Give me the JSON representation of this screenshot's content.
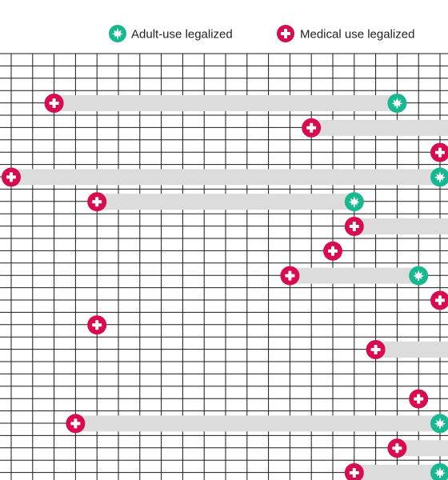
{
  "chart_data": {
    "type": "timeline",
    "legend": {
      "placement": "top-right",
      "items": [
        {
          "key": "adult",
          "label": "Adult-use legalized",
          "color": "#17b890",
          "icon": "cannabis-leaf-icon"
        },
        {
          "key": "medical",
          "label": "Medical use legalized",
          "color": "#d90b4f",
          "icon": "medical-cross-icon"
        }
      ]
    },
    "grid": true,
    "x_unit": "grid-columns",
    "xlim": [
      0,
      21
    ],
    "rows": [
      {
        "medical": 2.5,
        "adult": 18.5
      },
      {
        "medical": 14.5,
        "adult": null,
        "continues": true
      },
      {
        "medical": 20.5,
        "adult": null
      },
      {
        "medical": 0.5,
        "adult": 20.5
      },
      {
        "medical": 4.5,
        "adult": 16.5
      },
      {
        "medical": 16.5,
        "adult": null,
        "continues": true
      },
      {
        "medical": 15.5,
        "adult": null
      },
      {
        "medical": 13.5,
        "adult": 19.5
      },
      {
        "medical": 20.5,
        "adult": null
      },
      {
        "medical": 4.5,
        "adult": null
      },
      {
        "medical": 17.5,
        "adult": null,
        "continues": true
      },
      {
        "medical": null,
        "adult": null
      },
      {
        "medical": 19.5,
        "adult": null
      },
      {
        "medical": 3.5,
        "adult": 20.5
      },
      {
        "medical": 18.5,
        "adult": null,
        "continues": true
      },
      {
        "medical": 16.5,
        "adult": 20.5
      }
    ]
  }
}
